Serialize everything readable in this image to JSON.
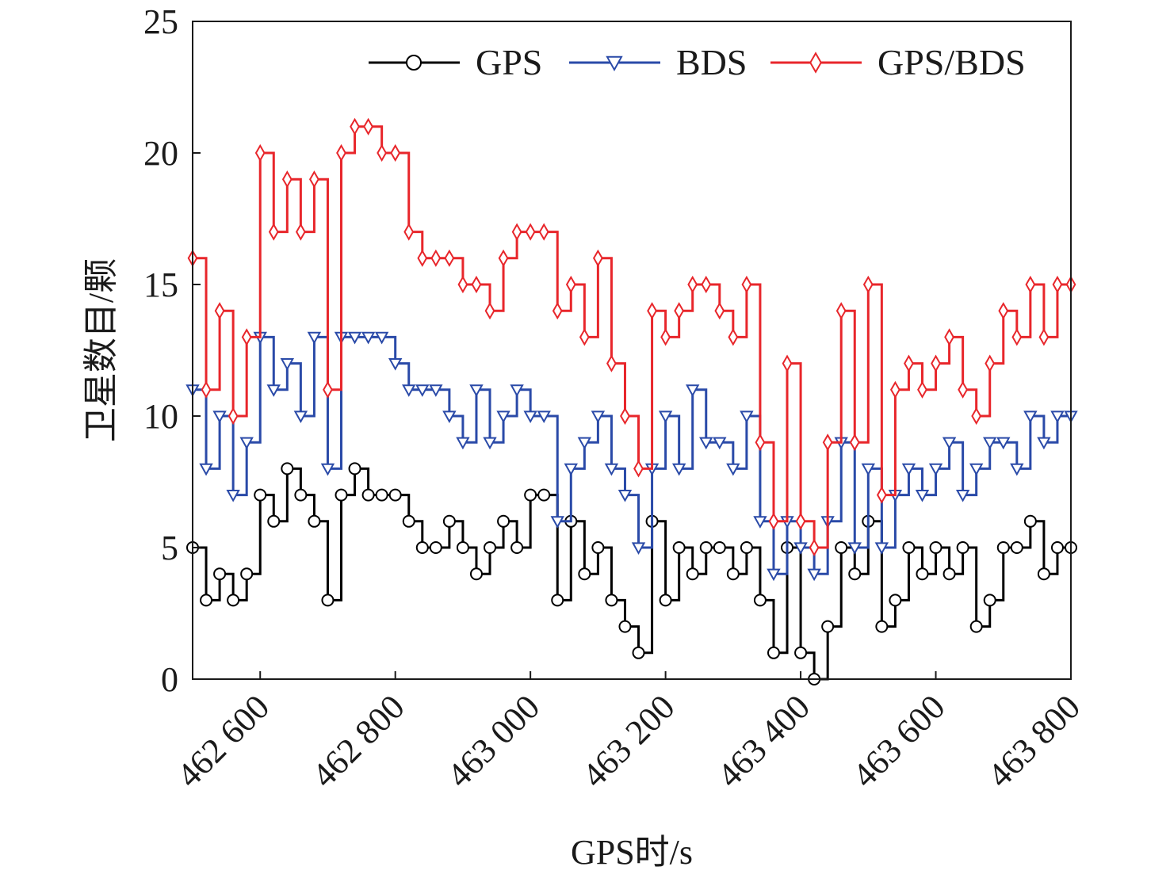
{
  "chart_data": {
    "type": "line",
    "xlabel": "GPS时/s",
    "ylabel": "卫星数目/颗",
    "xlim": [
      462500,
      463800
    ],
    "ylim": [
      0,
      25
    ],
    "x_tick_values": [
      462600,
      462800,
      463000,
      463200,
      463400,
      463600,
      463800
    ],
    "x_tick_labels": [
      "462 600",
      "462 800",
      "463 000",
      "463 200",
      "463 400",
      "463 600",
      "463 800"
    ],
    "y_tick_values": [
      0,
      5,
      10,
      15,
      20,
      25
    ],
    "y_tick_labels": [
      "0",
      "5",
      "10",
      "15",
      "20",
      "25"
    ],
    "legend_position": "top-right",
    "series": [
      {
        "name": "GPS",
        "color": "#000000",
        "marker": "circle",
        "x": [
          462500,
          462520,
          462540,
          462560,
          462580,
          462600,
          462620,
          462640,
          462660,
          462680,
          462700,
          462720,
          462740,
          462760,
          462780,
          462800,
          462820,
          462840,
          462860,
          462880,
          462900,
          462920,
          462940,
          462960,
          462980,
          463000,
          463020,
          463040,
          463060,
          463080,
          463100,
          463120,
          463140,
          463160,
          463180,
          463200,
          463220,
          463240,
          463260,
          463280,
          463300,
          463320,
          463340,
          463360,
          463380,
          463400,
          463420,
          463440,
          463460,
          463480,
          463500,
          463520,
          463540,
          463560,
          463580,
          463600,
          463620,
          463640,
          463660,
          463680,
          463700,
          463720,
          463740,
          463760,
          463780,
          463800
        ],
        "y": [
          5,
          3,
          4,
          3,
          4,
          7,
          6,
          8,
          7,
          6,
          3,
          7,
          8,
          7,
          7,
          7,
          6,
          5,
          5,
          6,
          5,
          4,
          5,
          6,
          5,
          7,
          7,
          3,
          6,
          4,
          5,
          3,
          2,
          1,
          6,
          3,
          5,
          4,
          5,
          5,
          4,
          5,
          3,
          1,
          5,
          1,
          0,
          2,
          5,
          4,
          6,
          2,
          3,
          5,
          4,
          5,
          4,
          5,
          2,
          3,
          5,
          5,
          6,
          4,
          5,
          5
        ]
      },
      {
        "name": "BDS",
        "color": "#2a4aa8",
        "marker": "triangle-down",
        "x": [
          462500,
          462520,
          462540,
          462560,
          462580,
          462600,
          462620,
          462640,
          462660,
          462680,
          462700,
          462720,
          462740,
          462760,
          462780,
          462800,
          462820,
          462840,
          462860,
          462880,
          462900,
          462920,
          462940,
          462960,
          462980,
          463000,
          463020,
          463040,
          463060,
          463080,
          463100,
          463120,
          463140,
          463160,
          463180,
          463200,
          463220,
          463240,
          463260,
          463280,
          463300,
          463320,
          463340,
          463360,
          463380,
          463400,
          463420,
          463440,
          463460,
          463480,
          463500,
          463520,
          463540,
          463560,
          463580,
          463600,
          463620,
          463640,
          463660,
          463680,
          463700,
          463720,
          463740,
          463760,
          463780,
          463800
        ],
        "y": [
          11,
          8,
          10,
          7,
          9,
          13,
          11,
          12,
          10,
          13,
          8,
          13,
          13,
          13,
          13,
          12,
          11,
          11,
          11,
          10,
          9,
          11,
          9,
          10,
          11,
          10,
          10,
          6,
          8,
          9,
          10,
          8,
          7,
          5,
          8,
          10,
          8,
          11,
          9,
          9,
          8,
          10,
          6,
          4,
          6,
          5,
          4,
          6,
          9,
          5,
          8,
          5,
          7,
          8,
          7,
          8,
          9,
          7,
          8,
          9,
          9,
          8,
          10,
          9,
          10,
          10
        ]
      },
      {
        "name": "GPS/BDS",
        "color": "#e8262b",
        "marker": "diamond",
        "x": [
          462500,
          462520,
          462540,
          462560,
          462580,
          462600,
          462620,
          462640,
          462660,
          462680,
          462700,
          462720,
          462740,
          462760,
          462780,
          462800,
          462820,
          462840,
          462860,
          462880,
          462900,
          462920,
          462940,
          462960,
          462980,
          463000,
          463020,
          463040,
          463060,
          463080,
          463100,
          463120,
          463140,
          463160,
          463180,
          463200,
          463220,
          463240,
          463260,
          463280,
          463300,
          463320,
          463340,
          463360,
          463380,
          463400,
          463420,
          463440,
          463460,
          463480,
          463500,
          463520,
          463540,
          463560,
          463580,
          463600,
          463620,
          463640,
          463660,
          463680,
          463700,
          463720,
          463740,
          463760,
          463780,
          463800
        ],
        "y": [
          16,
          11,
          14,
          10,
          13,
          20,
          17,
          19,
          17,
          19,
          11,
          20,
          21,
          21,
          20,
          20,
          17,
          16,
          16,
          16,
          15,
          15,
          14,
          16,
          17,
          17,
          17,
          14,
          15,
          13,
          16,
          12,
          10,
          8,
          14,
          13,
          14,
          15,
          15,
          14,
          13,
          15,
          9,
          6,
          12,
          6,
          5,
          9,
          14,
          9,
          15,
          7,
          11,
          12,
          11,
          12,
          13,
          11,
          10,
          12,
          14,
          13,
          15,
          13,
          15,
          15
        ]
      }
    ]
  }
}
